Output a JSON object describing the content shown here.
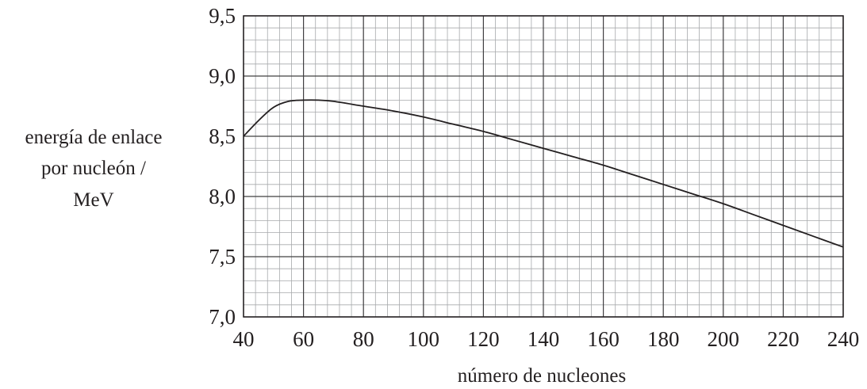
{
  "chart_data": {
    "type": "line",
    "title": "",
    "xlabel": "número de nucleones",
    "ylabel_lines": [
      "energía de enlace",
      "por nucleón /",
      "MeV"
    ],
    "xlim": [
      40,
      240
    ],
    "ylim": [
      7.0,
      9.5
    ],
    "x_ticks": [
      40,
      60,
      80,
      100,
      120,
      140,
      160,
      180,
      200,
      220,
      240
    ],
    "x_tick_labels": [
      "40",
      "60",
      "80",
      "100",
      "120",
      "140",
      "160",
      "180",
      "200",
      "220",
      "240"
    ],
    "y_ticks": [
      7.0,
      7.5,
      8.0,
      8.5,
      9.0,
      9.5
    ],
    "y_tick_labels": [
      "7,0",
      "7,5",
      "8,0",
      "8,5",
      "9,0",
      "9,5"
    ],
    "minor_x_step": 4,
    "minor_y_step": 0.1,
    "grid": true,
    "legend": "none",
    "series": [
      {
        "x": [
          40,
          45,
          50,
          55,
          60,
          65,
          70,
          80,
          90,
          100,
          110,
          120,
          130,
          140,
          150,
          160,
          170,
          180,
          190,
          200,
          210,
          220,
          230,
          240
        ],
        "values": [
          8.5,
          8.63,
          8.74,
          8.79,
          8.8,
          8.8,
          8.79,
          8.75,
          8.71,
          8.66,
          8.6,
          8.54,
          8.47,
          8.4,
          8.33,
          8.26,
          8.18,
          8.1,
          8.02,
          7.94,
          7.85,
          7.76,
          7.67,
          7.58
        ]
      }
    ]
  }
}
